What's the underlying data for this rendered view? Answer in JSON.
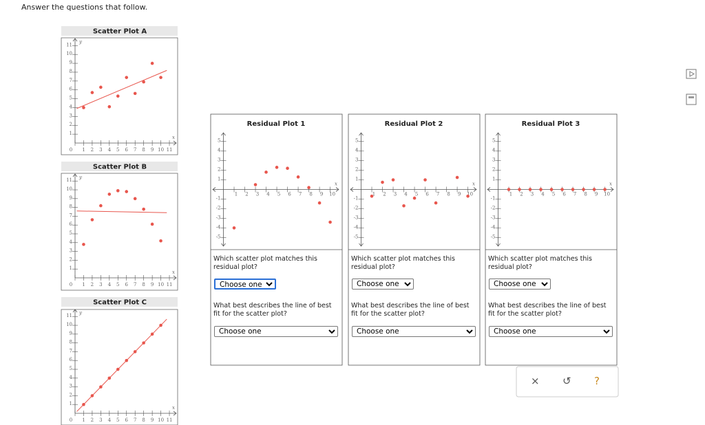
{
  "header": {
    "instruction": "Answer the questions that follow."
  },
  "scatter_plots": [
    {
      "title": "Scatter Plot A",
      "chart_data": {
        "type": "scatter",
        "color": "#e8564d",
        "x": [
          1,
          2,
          3,
          4,
          5,
          6,
          7,
          8,
          9,
          10
        ],
        "values": [
          4,
          5.7,
          6.3,
          4.1,
          5.3,
          7.4,
          5.6,
          6.9,
          9,
          7.4
        ],
        "fit_line": {
          "x": [
            0.2,
            10.7
          ],
          "y": [
            3.9,
            8.2
          ],
          "color": "#e8564d"
        },
        "xlim": [
          0,
          11.8
        ],
        "ylim": [
          0,
          11.8
        ],
        "xticks": [
          0,
          1,
          2,
          3,
          4,
          5,
          6,
          7,
          8,
          9,
          10,
          11
        ],
        "yticks": [
          1,
          2,
          3,
          4,
          5,
          6,
          7,
          8,
          9,
          10,
          11
        ],
        "x_label": "x",
        "y_label": "y"
      }
    },
    {
      "title": "Scatter Plot B",
      "chart_data": {
        "type": "scatter",
        "color": "#e8564d",
        "x": [
          1,
          2,
          3,
          4,
          5,
          6,
          7,
          8,
          9,
          10
        ],
        "values": [
          3.8,
          6.6,
          8.2,
          9.5,
          9.9,
          9.8,
          9,
          7.8,
          6.1,
          4.2
        ],
        "fit_line": {
          "x": [
            0.2,
            10.7
          ],
          "y": [
            7.6,
            7.4
          ],
          "color": "#e8564d"
        },
        "xlim": [
          0,
          11.8
        ],
        "ylim": [
          0,
          11.8
        ],
        "xticks": [
          0,
          1,
          2,
          3,
          4,
          5,
          6,
          7,
          8,
          9,
          10,
          11
        ],
        "yticks": [
          1,
          2,
          3,
          4,
          5,
          6,
          7,
          8,
          9,
          10,
          11
        ],
        "x_label": "x",
        "y_label": "y"
      }
    },
    {
      "title": "Scatter Plot C",
      "chart_data": {
        "type": "scatter",
        "color": "#e8564d",
        "x": [
          1,
          2,
          3,
          4,
          5,
          6,
          7,
          8,
          9,
          10
        ],
        "values": [
          1,
          2,
          3,
          4,
          5,
          6,
          7,
          8,
          9,
          10
        ],
        "fit_line": {
          "x": [
            0.2,
            10.7
          ],
          "y": [
            0.2,
            10.7
          ],
          "color": "#e8564d"
        },
        "xlim": [
          0,
          11.8
        ],
        "ylim": [
          0,
          11.8
        ],
        "xticks": [
          0,
          1,
          2,
          3,
          4,
          5,
          6,
          7,
          8,
          9,
          10,
          11
        ],
        "yticks": [
          1,
          2,
          3,
          4,
          5,
          6,
          7,
          8,
          9,
          10,
          11
        ],
        "x_label": "x",
        "y_label": "y"
      }
    }
  ],
  "residual_plots": [
    {
      "title": "Residual Plot 1",
      "chart_data": {
        "type": "scatter",
        "color": "#e8564d",
        "x": [
          1,
          3,
          4,
          5,
          6,
          7,
          8,
          9,
          10
        ],
        "values": [
          -4,
          0.5,
          1.8,
          2.3,
          2.2,
          1.3,
          0.2,
          -1.4,
          -3.4
        ],
        "xlim": [
          -1,
          10.8
        ],
        "ylim": [
          -5.9,
          5.9
        ],
        "xticks": [
          1,
          2,
          3,
          4,
          5,
          6,
          7,
          8,
          9,
          10
        ],
        "yticks": [
          -5,
          -4,
          -3,
          -2,
          -1,
          1,
          2,
          3,
          4,
          5
        ],
        "x_label": "x"
      },
      "questions": [
        {
          "prompt": "Which scatter plot matches this residual plot?",
          "select": "Choose one"
        },
        {
          "prompt": "What best describes the line of best fit for the scatter plot?",
          "select": "Choose one"
        }
      ]
    },
    {
      "title": "Residual Plot 2",
      "chart_data": {
        "type": "scatter",
        "color": "#e8564d",
        "x": [
          1,
          2,
          3,
          4,
          5,
          6,
          7,
          9,
          10
        ],
        "values": [
          -0.7,
          0.75,
          1,
          -1.7,
          -0.9,
          1,
          -1.4,
          1.25,
          -0.7
        ],
        "xlim": [
          -1,
          10.8
        ],
        "ylim": [
          -5.9,
          5.9
        ],
        "xticks": [
          1,
          2,
          3,
          4,
          5,
          6,
          7,
          8,
          9,
          10
        ],
        "yticks": [
          -5,
          -4,
          -3,
          -2,
          -1,
          1,
          2,
          3,
          4,
          5
        ],
        "x_label": "x"
      },
      "questions": [
        {
          "prompt": "Which scatter plot matches this residual plot?",
          "select": "Choose one"
        },
        {
          "prompt": "What best describes the line of best fit for the scatter plot?",
          "select": "Choose one"
        }
      ]
    },
    {
      "title": "Residual Plot 3",
      "chart_data": {
        "type": "scatter",
        "color": "#e8564d",
        "x": [
          1,
          2,
          3,
          4,
          5,
          6,
          7,
          8,
          9,
          10
        ],
        "values": [
          0,
          0,
          0,
          0,
          0,
          0,
          0,
          0,
          0,
          0
        ],
        "xlim": [
          -1,
          10.8
        ],
        "ylim": [
          -5.9,
          5.9
        ],
        "xticks": [
          1,
          2,
          3,
          4,
          5,
          6,
          7,
          8,
          9,
          10
        ],
        "yticks": [
          -5,
          -4,
          -3,
          -2,
          -1,
          1,
          2,
          3,
          4,
          5
        ],
        "x_label": "x"
      },
      "questions": [
        {
          "prompt": "Which scatter plot matches this residual plot?",
          "select": "Choose one"
        },
        {
          "prompt": "What best describes the line of best fit for the scatter plot?",
          "select": "Choose one"
        }
      ]
    }
  ],
  "buttons": [
    "×",
    "↺",
    "?"
  ]
}
